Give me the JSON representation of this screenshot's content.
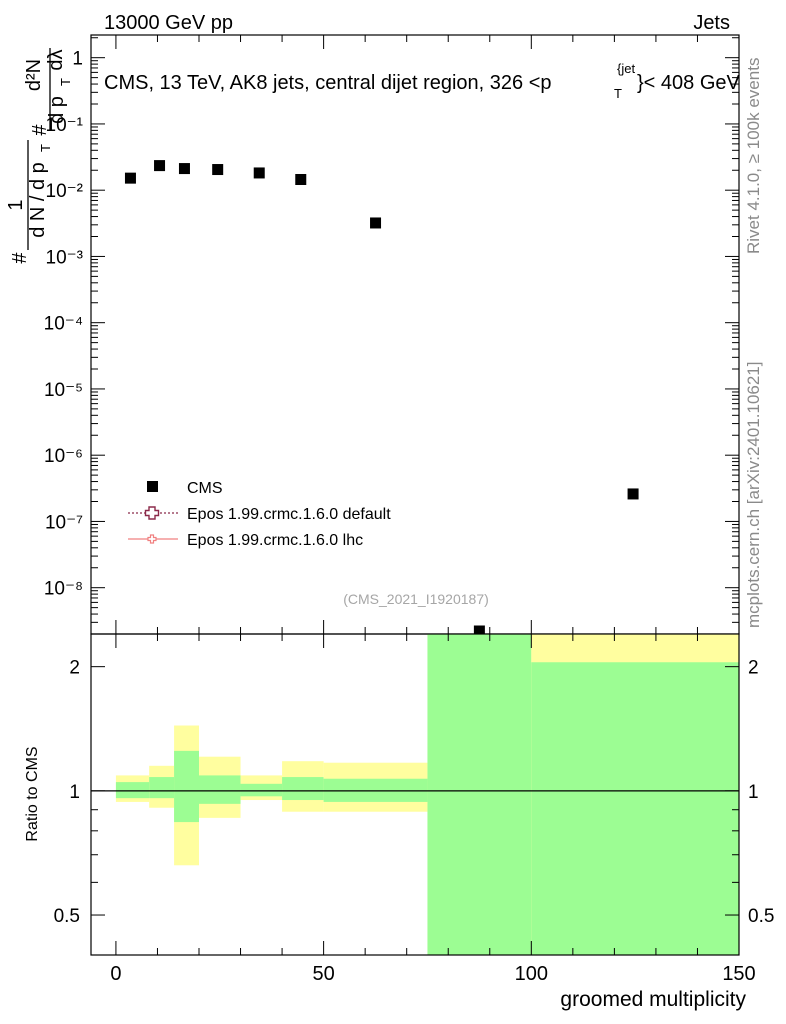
{
  "header": {
    "left": "13000 GeV pp",
    "right": "Jets"
  },
  "side_labels": {
    "rivet": "Rivet 4.1.0, ≥ 100k events",
    "mcplots": "mcplots.cern.ch [arXiv:2401.10621]"
  },
  "chart_data": [
    {
      "type": "scatter",
      "title": "CMS, 13 TeV, AK8 jets, central dijet region, 326 <p",
      "title_sup": "{jet",
      "title_sub": "T",
      "title_end": "}< 408 GeV",
      "ylabel_parts": {
        "hash": "#",
        "one": "1",
        "dn": "d N / d p",
        "t": "T",
        "hash2": "#",
        "dp": "d p",
        "t2": "T",
        "d2n": "d²N",
        "dl": "dλ"
      },
      "yscale": "log",
      "ylim": [
        2e-09,
        2.2
      ],
      "xlim": [
        -6,
        150
      ],
      "y_tick_labels": [
        "1",
        "10⁻¹",
        "10⁻²",
        "10⁻³",
        "10⁻⁴",
        "10⁻⁵",
        "10⁻⁶",
        "10⁻⁷",
        "10⁻⁸"
      ],
      "y_tick_values": [
        1,
        0.1,
        0.01,
        0.001,
        0.0001,
        1e-05,
        1e-06,
        1e-07,
        1e-08
      ],
      "watermark": "(CMS_2021_I1920187)",
      "legend": {
        "position": "bottom-left",
        "entries": [
          "CMS",
          "Epos 1.99.crmc.1.6.0 default",
          "Epos 1.99.crmc.1.6.0 lhc"
        ]
      },
      "series": [
        {
          "name": "CMS",
          "x": [
            3.5,
            10.5,
            16.5,
            24.5,
            34.5,
            44.5,
            62.5,
            87.5,
            124.5
          ],
          "y": [
            0.0152,
            0.0235,
            0.0212,
            0.0205,
            0.0182,
            0.0145,
            0.0032,
            2e-09,
            2.6e-07
          ],
          "color": "#000000"
        }
      ]
    },
    {
      "type": "area",
      "ylabel": "Ratio to CMS",
      "xlabel": "groomed multiplicity",
      "yscale": "log",
      "ylim": [
        0.4,
        2.4
      ],
      "xlim": [
        -6,
        150
      ],
      "x_tick_labels": [
        "0",
        "50",
        "100",
        "150"
      ],
      "x_tick_values": [
        0,
        50,
        100,
        150
      ],
      "y_tick_labels": [
        "0.5",
        "1",
        "2"
      ],
      "y_tick_values": [
        0.5,
        1,
        2
      ],
      "reference_line": 1,
      "bands": [
        {
          "x0": 0,
          "x1": 8,
          "green": [
            0.96,
            1.05
          ],
          "yellow": [
            0.94,
            1.09
          ]
        },
        {
          "x0": 8,
          "x1": 14,
          "green": [
            0.96,
            1.08
          ],
          "yellow": [
            0.91,
            1.15
          ]
        },
        {
          "x0": 14,
          "x1": 20,
          "green": [
            0.84,
            1.25
          ],
          "yellow": [
            0.66,
            1.44
          ]
        },
        {
          "x0": 20,
          "x1": 30,
          "green": [
            0.93,
            1.09
          ],
          "yellow": [
            0.86,
            1.21
          ]
        },
        {
          "x0": 30,
          "x1": 40,
          "green": [
            0.97,
            1.04
          ],
          "yellow": [
            0.95,
            1.09
          ]
        },
        {
          "x0": 40,
          "x1": 50,
          "green": [
            0.95,
            1.08
          ],
          "yellow": [
            0.89,
            1.18
          ]
        },
        {
          "x0": 50,
          "x1": 75,
          "green": [
            0.94,
            1.07
          ],
          "yellow": [
            0.89,
            1.17
          ]
        },
        {
          "x0": 75,
          "x1": 100,
          "green": [
            0.2,
            5.0
          ],
          "yellow": [
            0.2,
            5.0
          ]
        },
        {
          "x0": 100,
          "x1": 150,
          "green": [
            0.2,
            2.05
          ],
          "yellow": [
            0.2,
            5.0
          ]
        }
      ],
      "colors": {
        "green": "#9cfd93",
        "yellow": "#fffe9f"
      }
    }
  ]
}
